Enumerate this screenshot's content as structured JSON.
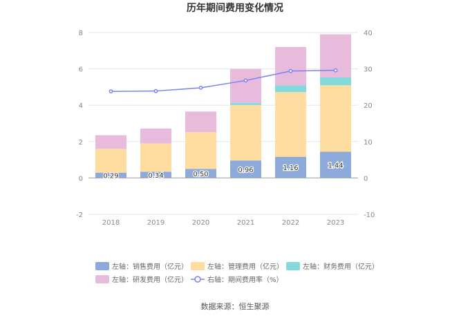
{
  "chart_data": {
    "type": "bar",
    "title": "历年期间费用变化情况",
    "categories": [
      "2018",
      "2019",
      "2020",
      "2021",
      "2022",
      "2023"
    ],
    "series": [
      {
        "name": "左轴：销售费用（亿元）",
        "axis": "left",
        "kind": "stacked-bar",
        "color": "#8eaadb",
        "values": [
          0.29,
          0.34,
          0.5,
          0.96,
          1.16,
          1.44
        ],
        "labels": [
          "0.29",
          "0.34",
          "0.50",
          "0.96",
          "1.16",
          "1.44"
        ]
      },
      {
        "name": "左轴：管理费用（亿元）",
        "axis": "left",
        "kind": "stacked-bar",
        "color": "#ffdca0",
        "values": [
          1.31,
          1.56,
          2.02,
          3.05,
          3.56,
          3.66
        ]
      },
      {
        "name": "左轴：财务费用（亿元）",
        "axis": "left",
        "kind": "stacked-bar",
        "color": "#84d9dc",
        "values": [
          0.0,
          0.0,
          0.0,
          0.12,
          0.38,
          0.43
        ]
      },
      {
        "name": "左轴：研发费用（亿元）",
        "axis": "left",
        "kind": "stacked-bar",
        "color": "#e8bbdd",
        "values": [
          0.75,
          0.82,
          1.13,
          1.87,
          2.1,
          2.37
        ]
      },
      {
        "name": "右轴：期间费用率（%）",
        "axis": "right",
        "kind": "line",
        "color": "#7b82f0",
        "values": [
          23.8,
          23.9,
          24.8,
          26.8,
          29.4,
          29.6
        ]
      }
    ],
    "left_axis": {
      "ylim": [
        -2,
        8
      ],
      "ticks": [
        -2,
        0,
        2,
        4,
        6,
        8
      ]
    },
    "right_axis": {
      "ylim": [
        -10,
        40
      ],
      "ticks": [
        -10,
        0,
        10,
        20,
        30,
        40
      ]
    },
    "legend_position": "bottom",
    "grid": true
  },
  "source_text": "数据来源：恒生聚源"
}
